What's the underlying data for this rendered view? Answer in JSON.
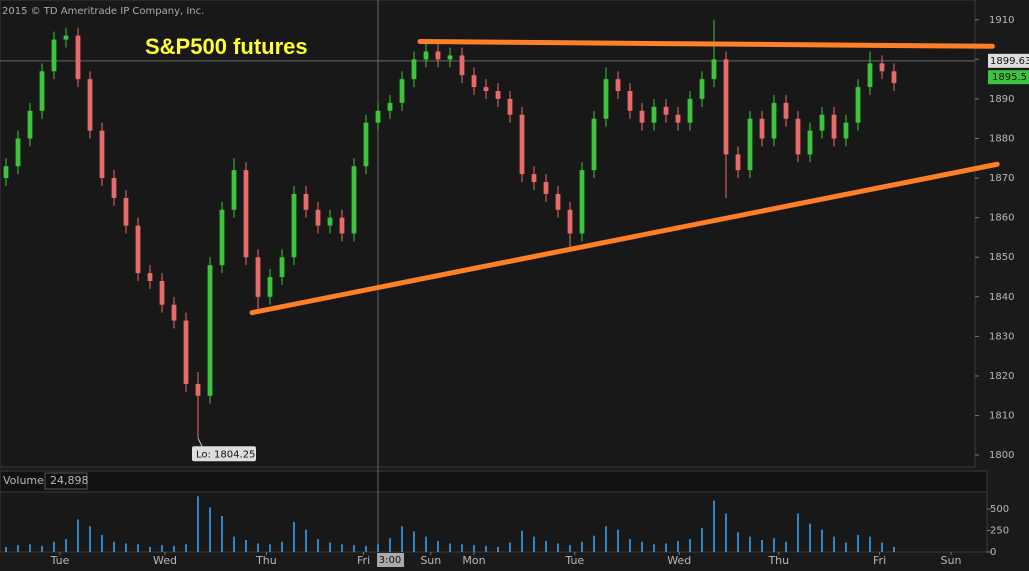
{
  "chart_data": {
    "type": "candlestick",
    "title": "S&P500 futures",
    "copyright": "2015 © TD Ameritrade IP Company, Inc.",
    "low_label": "Lo: 1804.25",
    "opens": [
      1870,
      1873,
      1880,
      1887,
      1897,
      1905,
      1906,
      1895,
      1882,
      1870,
      1865,
      1858,
      1846,
      1844,
      1838,
      1834,
      1818,
      1815,
      1848,
      1862,
      1872,
      1850,
      1840,
      1845,
      1850,
      1866,
      1862,
      1858,
      1860,
      1856,
      1873,
      1884,
      1887,
      1889,
      1895,
      1900,
      1902,
      1900,
      1901,
      1896,
      1893,
      1892,
      1890,
      1886,
      1871,
      1869,
      1866,
      1862,
      1856,
      1872,
      1885,
      1895,
      1892,
      1887,
      1884,
      1888,
      1886,
      1884,
      1890,
      1895,
      1900,
      1876,
      1872,
      1885,
      1880,
      1889,
      1885,
      1876,
      1882,
      1886,
      1880,
      1884,
      1893,
      1899,
      1897
    ],
    "highs": [
      1875,
      1882,
      1889,
      1899,
      1907,
      1908,
      1908,
      1897,
      1884,
      1872,
      1867,
      1860,
      1848,
      1846,
      1840,
      1836,
      1821,
      1850,
      1864,
      1875,
      1874,
      1852,
      1847,
      1852,
      1868,
      1868,
      1864,
      1862,
      1862,
      1875,
      1886,
      1889,
      1891,
      1897,
      1902,
      1904,
      1904,
      1903,
      1903,
      1898,
      1895,
      1894,
      1892,
      1888,
      1873,
      1871,
      1868,
      1864,
      1874,
      1887,
      1898,
      1897,
      1894,
      1889,
      1890,
      1890,
      1888,
      1892,
      1897,
      1910,
      1902,
      1878,
      1887,
      1887,
      1891,
      1891,
      1887,
      1884,
      1888,
      1888,
      1886,
      1895,
      1902,
      1901,
      1899
    ],
    "lows": [
      1868,
      1871,
      1878,
      1885,
      1895,
      1903,
      1893,
      1880,
      1868,
      1863,
      1856,
      1844,
      1842,
      1836,
      1832,
      1816,
      1804.25,
      1813,
      1846,
      1860,
      1848,
      1837,
      1838,
      1843,
      1848,
      1860,
      1856,
      1856,
      1854,
      1854,
      1871,
      1882,
      1885,
      1887,
      1893,
      1898,
      1898,
      1898,
      1894,
      1891,
      1890,
      1888,
      1884,
      1869,
      1867,
      1864,
      1860,
      1852,
      1854,
      1870,
      1883,
      1890,
      1885,
      1882,
      1882,
      1884,
      1882,
      1882,
      1888,
      1893,
      1865,
      1870,
      1870,
      1878,
      1878,
      1883,
      1874,
      1874,
      1880,
      1878,
      1878,
      1882,
      1891,
      1895,
      1892
    ],
    "closes": [
      1873,
      1880,
      1887,
      1897,
      1905,
      1906,
      1895,
      1882,
      1870,
      1865,
      1858,
      1846,
      1844,
      1838,
      1834,
      1818,
      1815,
      1848,
      1862,
      1872,
      1850,
      1840,
      1845,
      1850,
      1866,
      1862,
      1858,
      1860,
      1856,
      1873,
      1884,
      1887,
      1889,
      1895,
      1900,
      1902,
      1900,
      1901,
      1896,
      1893,
      1892,
      1890,
      1886,
      1871,
      1869,
      1866,
      1862,
      1856,
      1872,
      1885,
      1895,
      1892,
      1887,
      1884,
      1888,
      1886,
      1884,
      1890,
      1895,
      1900,
      1876,
      1872,
      1885,
      1880,
      1889,
      1885,
      1876,
      1882,
      1886,
      1880,
      1884,
      1893,
      1899,
      1897,
      1894
    ],
    "up_color": "#3cc43c",
    "down_color": "#e86a6a",
    "xlim": [
      -0.5,
      80.75
    ],
    "xticks": [
      {
        "value": 4.5,
        "label": "Tue"
      },
      {
        "value": 13.25,
        "label": "Wed"
      },
      {
        "value": 21.7,
        "label": "Thu"
      },
      {
        "value": 29.8,
        "label": "Fri"
      },
      {
        "value": 35.4,
        "label": "Sun"
      },
      {
        "value": 39,
        "label": "Mon"
      },
      {
        "value": 47.4,
        "label": "Tue"
      },
      {
        "value": 56.1,
        "label": "Wed"
      },
      {
        "value": 64.4,
        "label": "Thu"
      },
      {
        "value": 72.8,
        "label": "Fri"
      },
      {
        "value": 78.75,
        "label": "Sun"
      }
    ],
    "ylim": [
      1797,
      1915
    ],
    "yticks": [
      1800,
      1810,
      1820,
      1830,
      1840,
      1850,
      1860,
      1870,
      1880,
      1890,
      1900,
      1910
    ],
    "crosshair": {
      "x": {
        "value": 31,
        "label": "3:00"
      },
      "y": 1899.63
    },
    "last_price": 1895.5,
    "trendlines": [
      {
        "x": [
          34.5,
          82.2
        ],
        "y": [
          1904.5,
          1903.3
        ]
      },
      {
        "x": [
          20.5,
          82.6
        ],
        "y": [
          1836,
          1873.5
        ]
      }
    ],
    "trend_color": "#ff7f27",
    "volume_label": "Volume",
    "volume_total": "24,898",
    "volume": [
      60,
      80,
      90,
      70,
      120,
      150,
      380,
      300,
      200,
      120,
      100,
      90,
      60,
      80,
      70,
      90,
      650,
      520,
      420,
      180,
      140,
      100,
      90,
      120,
      350,
      260,
      150,
      110,
      90,
      80,
      70,
      90,
      160,
      300,
      240,
      180,
      130,
      100,
      90,
      80,
      70,
      60,
      110,
      250,
      180,
      130,
      100,
      80,
      120,
      190,
      300,
      260,
      150,
      120,
      90,
      100,
      130,
      150,
      280,
      600,
      450,
      230,
      180,
      140,
      160,
      120,
      450,
      330,
      260,
      180,
      110,
      200,
      180,
      110,
      60
    ],
    "volume_color": "#2f86c8",
    "volume_ylim": [
      0,
      700
    ],
    "volume_yticks": [
      0,
      250,
      500
    ]
  }
}
